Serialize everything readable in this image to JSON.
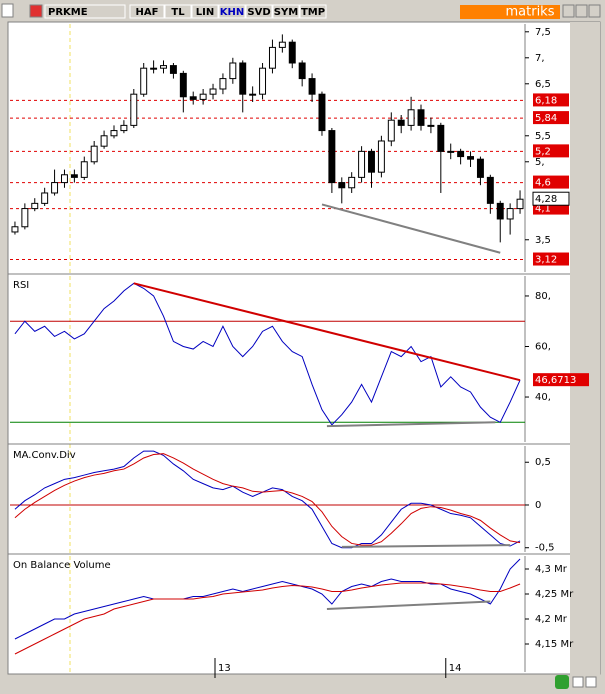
{
  "toolbar": {
    "symbol": "PRKME",
    "buttons": [
      "HAF",
      "TL",
      "LIN",
      "KHN",
      "SVD",
      "SYM",
      "TMP"
    ],
    "brand": "matriks"
  },
  "chart_data": [
    {
      "type": "candlestick",
      "open": [
        3.65,
        3.75,
        4.1,
        4.2,
        4.4,
        4.6,
        4.75,
        4.7,
        5.0,
        5.3,
        5.5,
        5.6,
        5.7,
        6.3,
        6.8,
        6.8,
        6.85,
        6.7,
        6.25,
        6.2,
        6.3,
        6.4,
        6.6,
        6.9,
        6.3,
        6.3,
        6.8,
        7.2,
        7.3,
        6.9,
        6.6,
        6.3,
        5.6,
        4.6,
        4.5,
        4.7,
        5.2,
        4.8,
        5.4,
        5.8,
        5.7,
        6.0,
        5.7,
        5.7,
        5.2,
        5.2,
        5.1,
        5.05,
        4.7,
        4.2,
        3.9,
        4.1
      ],
      "high": [
        3.85,
        4.2,
        4.3,
        4.5,
        4.85,
        4.85,
        4.85,
        5.1,
        5.4,
        5.6,
        5.7,
        5.8,
        6.4,
        6.9,
        6.95,
        6.95,
        6.9,
        6.75,
        6.35,
        6.4,
        6.5,
        6.7,
        7.0,
        6.95,
        6.45,
        6.9,
        7.35,
        7.45,
        7.35,
        6.95,
        6.7,
        6.35,
        5.65,
        4.7,
        4.8,
        5.3,
        5.25,
        5.5,
        5.95,
        5.9,
        6.25,
        6.1,
        5.85,
        5.75,
        5.35,
        5.25,
        5.2,
        5.1,
        4.75,
        4.25,
        4.2,
        4.45
      ],
      "low": [
        3.6,
        3.7,
        4.05,
        4.15,
        4.35,
        4.5,
        4.6,
        4.65,
        4.95,
        5.25,
        5.45,
        5.55,
        5.65,
        6.25,
        6.7,
        6.7,
        6.6,
        5.95,
        6.1,
        6.1,
        6.2,
        6.3,
        6.5,
        5.95,
        6.15,
        6.2,
        6.7,
        7.1,
        6.8,
        6.45,
        6.15,
        5.5,
        4.4,
        4.2,
        4.4,
        4.6,
        4.5,
        4.7,
        5.3,
        5.55,
        5.6,
        5.6,
        5.55,
        4.4,
        5.05,
        4.95,
        4.9,
        4.55,
        4.0,
        3.45,
        3.6,
        4.0
      ],
      "close": [
        3.75,
        4.1,
        4.2,
        4.4,
        4.6,
        4.75,
        4.7,
        5.0,
        5.3,
        5.5,
        5.6,
        5.7,
        6.3,
        6.8,
        6.8,
        6.85,
        6.7,
        6.25,
        6.2,
        6.3,
        6.4,
        6.6,
        6.9,
        6.3,
        6.3,
        6.8,
        7.2,
        7.3,
        6.9,
        6.6,
        6.3,
        5.6,
        4.6,
        4.5,
        4.7,
        5.2,
        4.8,
        5.4,
        5.8,
        5.7,
        6.0,
        5.7,
        5.7,
        5.2,
        5.2,
        5.1,
        5.05,
        4.7,
        4.2,
        3.9,
        4.1,
        4.28
      ],
      "last_label": "4,28",
      "up_color": "#ffffff",
      "down_color": "#000000",
      "ylim": [
        2.88,
        7.65
      ],
      "yticks": [
        {
          "value": 7.5,
          "label": "7,5"
        },
        {
          "value": 7,
          "label": "7,"
        },
        {
          "value": 6.5,
          "label": "6,5"
        },
        {
          "value": 5.5,
          "label": "5,5"
        },
        {
          "value": 5,
          "label": "5,"
        },
        {
          "value": 3.5,
          "label": "3,5"
        }
      ],
      "levels": [
        {
          "value": 6.18,
          "label": "6,18"
        },
        {
          "value": 5.84,
          "label": "5,84"
        },
        {
          "value": 5.2,
          "label": "5,2"
        },
        {
          "value": 4.6,
          "label": "4,6"
        },
        {
          "value": 4.1,
          "label": "4,1"
        },
        {
          "value": 3.12,
          "label": "3,12"
        }
      ],
      "level_color": "#e00000",
      "lines": [
        {
          "color": "#808080",
          "x": [
            31,
            49
          ],
          "y": [
            4.18,
            3.25
          ]
        }
      ]
    },
    {
      "type": "line",
      "title": "RSI",
      "series": [
        {
          "color": "#0000c0",
          "values": [
            65,
            70,
            66,
            68,
            64,
            66,
            63,
            65,
            70,
            75,
            78,
            82,
            85,
            83,
            80,
            72,
            62,
            60,
            59,
            62,
            60,
            68,
            60,
            56,
            60,
            66,
            68,
            62,
            58,
            56,
            45,
            35,
            29,
            33,
            38,
            45,
            38,
            48,
            58,
            56,
            60,
            54,
            56,
            44,
            48,
            44,
            42,
            36,
            32,
            30,
            38,
            46.6713
          ],
          "last_label": "46,6713"
        }
      ],
      "ylim": [
        22.2,
        87.9
      ],
      "yticks": [
        {
          "value": 80,
          "label": "80,"
        },
        {
          "value": 60,
          "label": "60,"
        },
        {
          "value": 40,
          "label": "40,"
        }
      ],
      "hlines": [
        {
          "value": 70,
          "color": "#c00000"
        },
        {
          "value": 30,
          "color": "#008000"
        }
      ],
      "lines": [
        {
          "color": "#d00000",
          "x": [
            12,
            51
          ],
          "y": [
            85,
            46.6713
          ]
        },
        {
          "color": "#808080",
          "x": [
            31.5,
            48.5
          ],
          "y": [
            28.5,
            30
          ]
        }
      ]
    },
    {
      "type": "line",
      "title": "MA.Conv.Div",
      "series": [
        {
          "color": "#0000c0",
          "values": [
            -0.05,
            0.05,
            0.12,
            0.2,
            0.25,
            0.3,
            0.32,
            0.35,
            0.38,
            0.4,
            0.42,
            0.45,
            0.55,
            0.63,
            0.63,
            0.58,
            0.48,
            0.4,
            0.3,
            0.25,
            0.2,
            0.18,
            0.22,
            0.15,
            0.1,
            0.15,
            0.2,
            0.18,
            0.1,
            0.05,
            -0.05,
            -0.25,
            -0.45,
            -0.5,
            -0.5,
            -0.45,
            -0.45,
            -0.35,
            -0.2,
            -0.05,
            0.02,
            0.02,
            0.0,
            -0.05,
            -0.1,
            -0.12,
            -0.15,
            -0.25,
            -0.35,
            -0.45,
            -0.48,
            -0.42
          ]
        },
        {
          "color": "#d00000",
          "values": [
            -0.15,
            -0.05,
            0.03,
            0.1,
            0.17,
            0.23,
            0.28,
            0.32,
            0.35,
            0.37,
            0.4,
            0.42,
            0.48,
            0.55,
            0.59,
            0.6,
            0.55,
            0.49,
            0.42,
            0.36,
            0.3,
            0.25,
            0.22,
            0.2,
            0.16,
            0.15,
            0.16,
            0.17,
            0.14,
            0.1,
            0.04,
            -0.08,
            -0.25,
            -0.37,
            -0.45,
            -0.47,
            -0.47,
            -0.43,
            -0.33,
            -0.22,
            -0.1,
            -0.04,
            -0.02,
            -0.03,
            -0.06,
            -0.1,
            -0.13,
            -0.18,
            -0.27,
            -0.35,
            -0.42,
            -0.44
          ]
        }
      ],
      "ylim": [
        -0.55,
        0.69
      ],
      "yticks": [
        {
          "value": 0.5,
          "label": "0,5"
        },
        0,
        {
          "value": -0.5,
          "label": "-0,5"
        }
      ],
      "hlines": [
        {
          "value": 0,
          "color": "#c00000"
        }
      ],
      "lines": [
        {
          "color": "#808080",
          "x": [
            33,
            50
          ],
          "y": [
            -0.49,
            -0.47
          ]
        }
      ]
    },
    {
      "type": "line",
      "title": "On Balance Volume",
      "series": [
        {
          "color": "#0000c0",
          "values": [
            4.16,
            4.17,
            4.18,
            4.19,
            4.2,
            4.2,
            4.21,
            4.215,
            4.22,
            4.225,
            4.23,
            4.235,
            4.24,
            4.245,
            4.24,
            4.24,
            4.24,
            4.24,
            4.245,
            4.245,
            4.25,
            4.255,
            4.26,
            4.255,
            4.26,
            4.265,
            4.27,
            4.275,
            4.27,
            4.265,
            4.26,
            4.25,
            4.23,
            4.255,
            4.265,
            4.27,
            4.265,
            4.275,
            4.28,
            4.275,
            4.275,
            4.275,
            4.27,
            4.27,
            4.26,
            4.255,
            4.25,
            4.24,
            4.23,
            4.26,
            4.3,
            4.32
          ]
        },
        {
          "color": "#d00000",
          "values": [
            4.13,
            4.14,
            4.15,
            4.16,
            4.17,
            4.18,
            4.19,
            4.2,
            4.205,
            4.21,
            4.22,
            4.225,
            4.23,
            4.235,
            4.24,
            4.24,
            4.24,
            4.24,
            4.24,
            4.243,
            4.245,
            4.25,
            4.252,
            4.254,
            4.256,
            4.258,
            4.262,
            4.265,
            4.267,
            4.266,
            4.264,
            4.26,
            4.255,
            4.255,
            4.258,
            4.262,
            4.265,
            4.268,
            4.27,
            4.272,
            4.272,
            4.272,
            4.272,
            4.27,
            4.268,
            4.265,
            4.262,
            4.258,
            4.255,
            4.255,
            4.262,
            4.27
          ]
        }
      ],
      "ylim": [
        4.094,
        4.326
      ],
      "yticks": [
        {
          "value": 4.3,
          "label": "4,3 Mr"
        },
        {
          "value": 4.25,
          "label": "4,25 Mr"
        },
        {
          "value": 4.2,
          "label": "4,2 Mr"
        },
        {
          "value": 4.15,
          "label": "4,15 Mr"
        }
      ],
      "lines": [
        {
          "color": "#808080",
          "x": [
            31.5,
            48
          ],
          "y": [
            4.22,
            4.235
          ]
        }
      ],
      "xticks": [
        {
          "value": 20.2,
          "label": "13"
        },
        {
          "value": 43.5,
          "label": "14"
        }
      ]
    }
  ]
}
